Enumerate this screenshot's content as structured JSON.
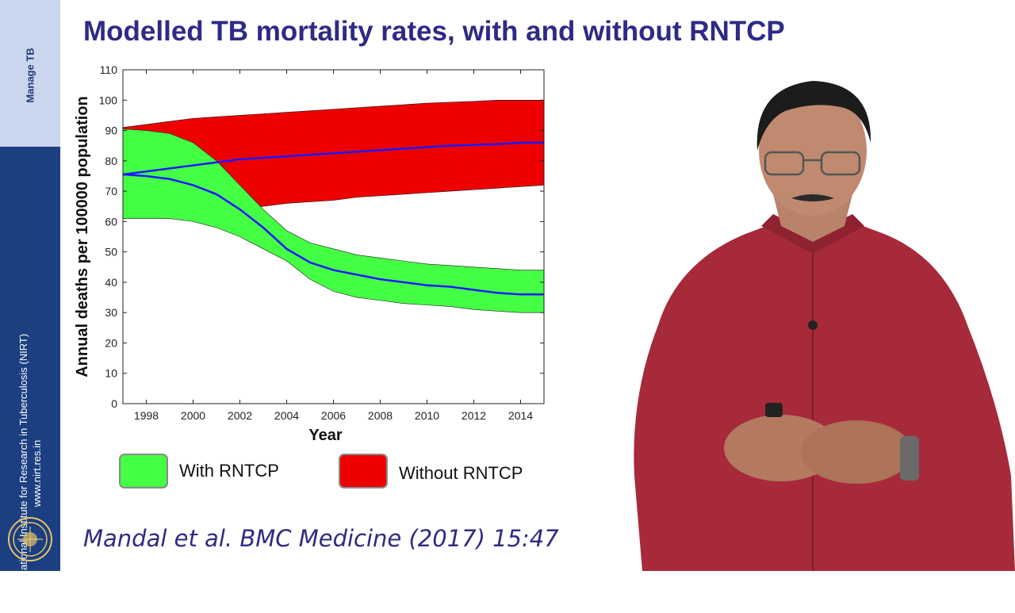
{
  "sidebar": {
    "top_label": "Manage TB",
    "institute_name": "ICMR - National Institute for Research in Tuberculosis (NIRT)",
    "website": "www.nirt.res.in"
  },
  "slide": {
    "title": "Modelled TB mortality rates, with and without RNTCP",
    "citation": "Mandal et al. BMC Medicine (2017) 15:47"
  },
  "chart_data": {
    "type": "area",
    "xlabel": "Year",
    "ylabel": "Annual deaths per 100000 population",
    "xlim": [
      1997,
      2015
    ],
    "ylim": [
      0,
      110
    ],
    "x_ticks": [
      "1998",
      "2000",
      "2002",
      "2004",
      "2006",
      "2008",
      "2010",
      "2012",
      "2014"
    ],
    "y_ticks": [
      "0",
      "10",
      "20",
      "30",
      "40",
      "50",
      "60",
      "70",
      "80",
      "90",
      "100",
      "110"
    ],
    "legend": "bottom",
    "x": [
      1997,
      1998,
      1999,
      2000,
      2001,
      2002,
      2003,
      2004,
      2005,
      2006,
      2007,
      2008,
      2009,
      2010,
      2011,
      2012,
      2013,
      2014,
      2015
    ],
    "series": [
      {
        "name": "With RNTCP",
        "color": "#44ff44",
        "upper": [
          90.5,
          90,
          89,
          86,
          80,
          72,
          64,
          57,
          53,
          51,
          49,
          48,
          47,
          46,
          45.5,
          45,
          44.5,
          44,
          44
        ],
        "lower": [
          61,
          61,
          61,
          60,
          58,
          55,
          51,
          47,
          41,
          37,
          35,
          34,
          33,
          32.5,
          32,
          31,
          30.5,
          30,
          30
        ],
        "median": [
          75.5,
          75,
          74,
          72,
          69,
          64,
          58,
          51,
          46.5,
          44,
          42.5,
          41,
          40,
          39,
          38.5,
          37.5,
          36.5,
          36,
          36
        ]
      },
      {
        "name": "Without RNTCP",
        "color": "#ee0000",
        "upper": [
          91,
          92,
          93,
          94,
          94.5,
          95,
          95.5,
          96,
          96.5,
          97,
          97.5,
          98,
          98.5,
          99,
          99.3,
          99.6,
          100,
          100,
          100
        ],
        "lower": [
          61,
          62,
          62.5,
          63,
          64,
          64.5,
          65,
          66,
          66.5,
          67,
          68,
          68.5,
          69,
          69.5,
          70,
          70.5,
          71,
          71.5,
          72
        ],
        "median": [
          75.5,
          76.5,
          77.5,
          78.5,
          79.5,
          80.5,
          81,
          81.5,
          82,
          82.5,
          83,
          83.5,
          84,
          84.5,
          85,
          85.2,
          85.5,
          86,
          86
        ]
      }
    ],
    "median_color": "#1a1aff"
  },
  "decor": {
    "person_shirt_color": "#a62a3a",
    "accent_text_color": "#2e2a86",
    "sidebar_color": "#1b3f80"
  }
}
